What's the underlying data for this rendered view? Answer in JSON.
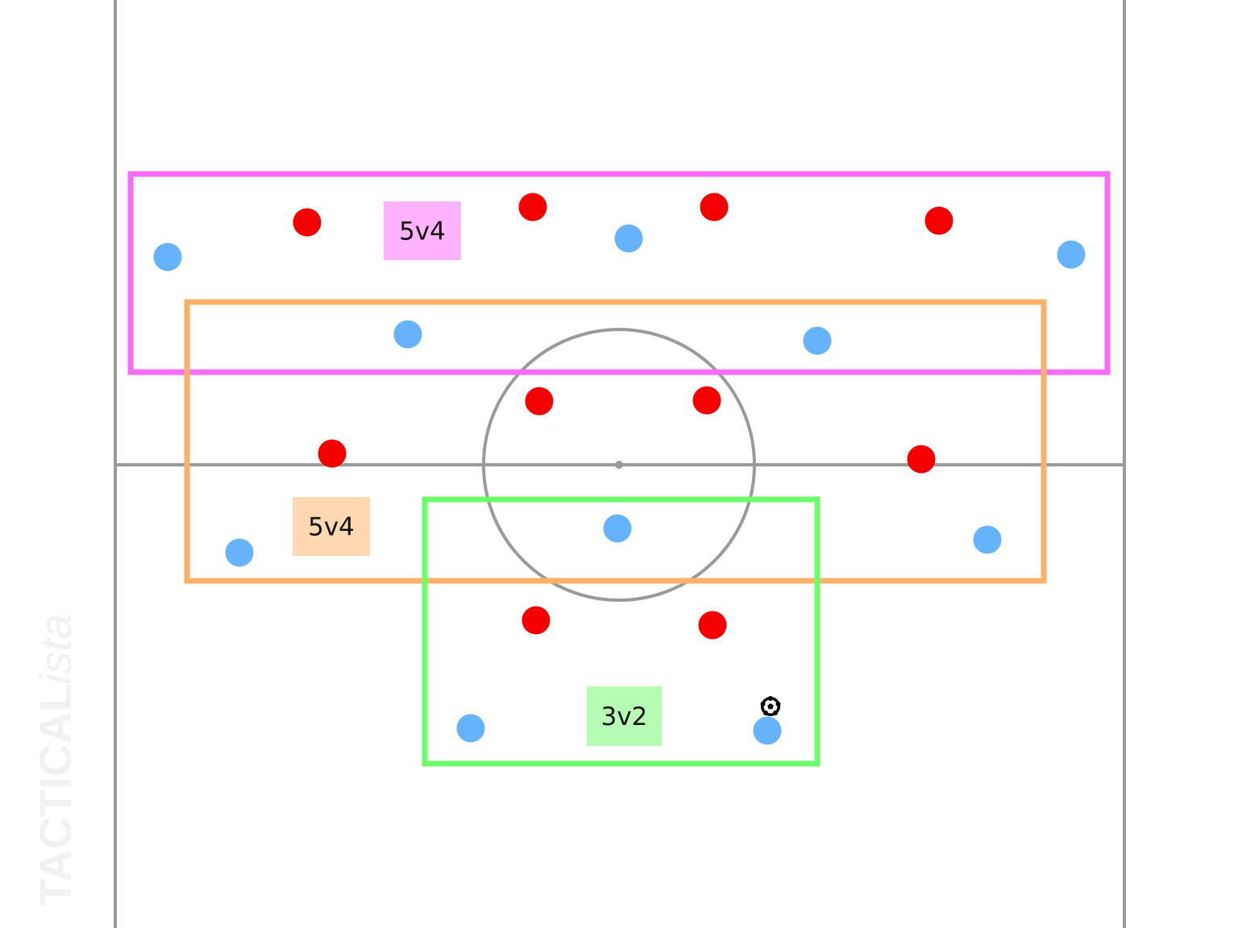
{
  "watermark": {
    "text_bold": "TACTICAL",
    "text_italic": "ista"
  },
  "colors": {
    "pitch_lines": "#9a9a9a",
    "team_red": "#f50000",
    "team_blue": "#66b3fb",
    "zone_top": "#f86af8",
    "zone_middle": "#fdb06a",
    "zone_bottom": "#6dfc6a"
  },
  "zones": [
    {
      "label": "5v4",
      "color": "#f86af8",
      "label_bg": "#fdb4fd"
    },
    {
      "label": "5v4",
      "color": "#fdb06a",
      "label_bg": "#fdd8b0"
    },
    {
      "label": "3v2",
      "color": "#6dfc6a",
      "label_bg": "#b6fcb4"
    }
  ],
  "ball_icon": "soccer-ball-icon"
}
